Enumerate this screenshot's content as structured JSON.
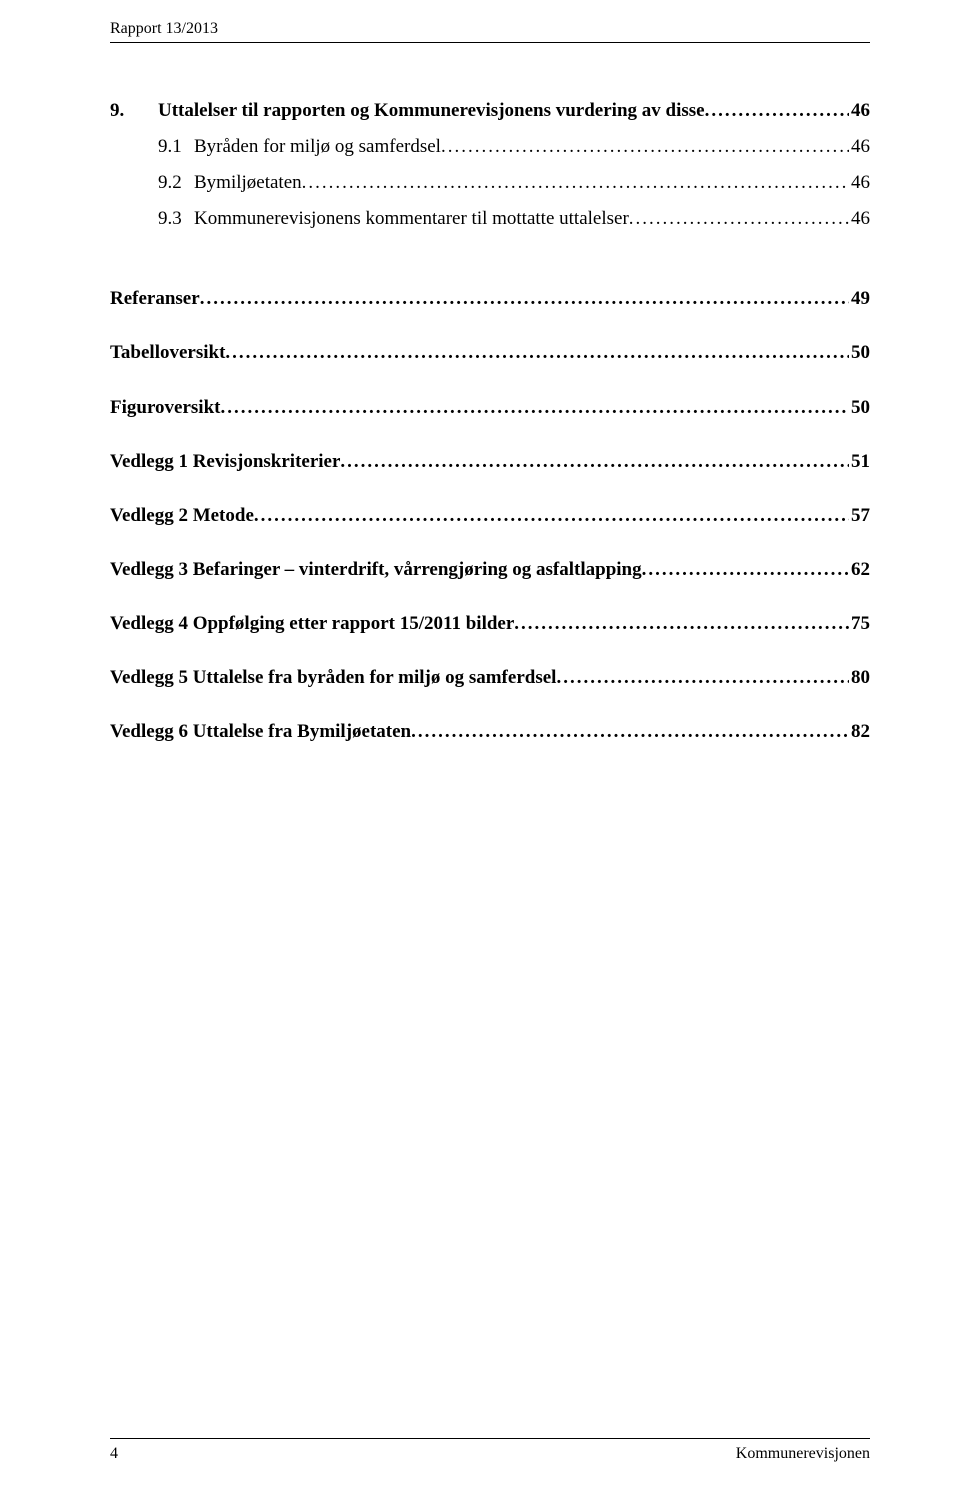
{
  "header": {
    "text": "Rapport 13/2013"
  },
  "toc": {
    "chapter9": {
      "num": "9.",
      "label": "Uttalelser til rapporten og Kommunerevisjonens vurdering av disse",
      "page": "46",
      "bold": true,
      "subs": [
        {
          "num": "9.1",
          "label": "Byråden for miljø og samferdsel",
          "page": "46"
        },
        {
          "num": "9.2",
          "label": "Bymiljøetaten",
          "page": "46"
        },
        {
          "num": "9.3",
          "label": "Kommunerevisjonens kommentarer til mottatte uttalelser",
          "page": "46"
        }
      ]
    },
    "sections": [
      {
        "label": "Referanser",
        "page": "49",
        "gap": "big"
      },
      {
        "label": "Tabelloversikt",
        "page": "50",
        "gap": "small"
      },
      {
        "label": "Figuroversikt",
        "page": "50",
        "gap": "small"
      },
      {
        "label": "Vedlegg 1 Revisjonskriterier",
        "page": "51",
        "gap": "small"
      },
      {
        "label": "Vedlegg 2 Metode",
        "page": "57",
        "gap": "small"
      },
      {
        "label": "Vedlegg 3 Befaringer – vinterdrift, vårrengjøring og asfaltlapping",
        "page": "62",
        "gap": "small"
      },
      {
        "label": "Vedlegg 4 Oppfølging etter rapport 15/2011 bilder",
        "page": "75",
        "gap": "small"
      },
      {
        "label": "Vedlegg 5 Uttalelse fra byråden for miljø og samferdsel",
        "page": "80",
        "gap": "small"
      },
      {
        "label": "Vedlegg 6 Uttalelse fra Bymiljøetaten",
        "page": "82",
        "gap": "small"
      }
    ]
  },
  "footer": {
    "page_number": "4",
    "org": "Kommunerevisjonen"
  }
}
